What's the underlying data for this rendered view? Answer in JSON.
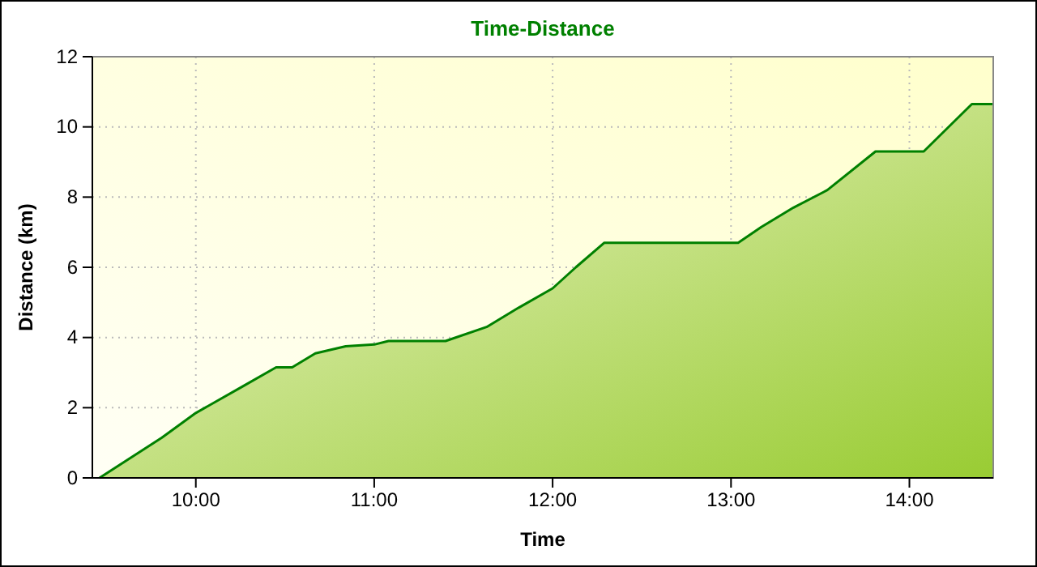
{
  "chart_data": {
    "type": "area",
    "title": "Time-Distance",
    "xlabel": "Time",
    "ylabel": "Distance (km)",
    "x": [
      9.46,
      9.81,
      10.0,
      10.26,
      10.45,
      10.54,
      10.67,
      10.84,
      11.0,
      11.08,
      11.4,
      11.63,
      11.81,
      12.0,
      12.13,
      12.29,
      13.04,
      13.17,
      13.35,
      13.54,
      13.81,
      14.08,
      14.35,
      14.47
    ],
    "series": [
      {
        "color": "#008000",
        "values": [
          0,
          1.15,
          1.85,
          2.6,
          3.15,
          3.15,
          3.55,
          3.75,
          3.8,
          3.9,
          3.9,
          4.3,
          4.85,
          5.4,
          6.0,
          6.7,
          6.7,
          7.15,
          7.7,
          8.2,
          9.3,
          9.3,
          10.65,
          10.65
        ]
      }
    ],
    "xlim": [
      9.42,
      14.47
    ],
    "ylim": [
      0,
      12
    ],
    "xticks": [
      {
        "value": 10,
        "label": "10:00"
      },
      {
        "value": 11,
        "label": "11:00"
      },
      {
        "value": 12,
        "label": "12:00"
      },
      {
        "value": 13,
        "label": "13:00"
      },
      {
        "value": 14,
        "label": "14:00"
      }
    ],
    "yticks": [
      0,
      2,
      4,
      6,
      8,
      10,
      12
    ],
    "grid": true
  }
}
